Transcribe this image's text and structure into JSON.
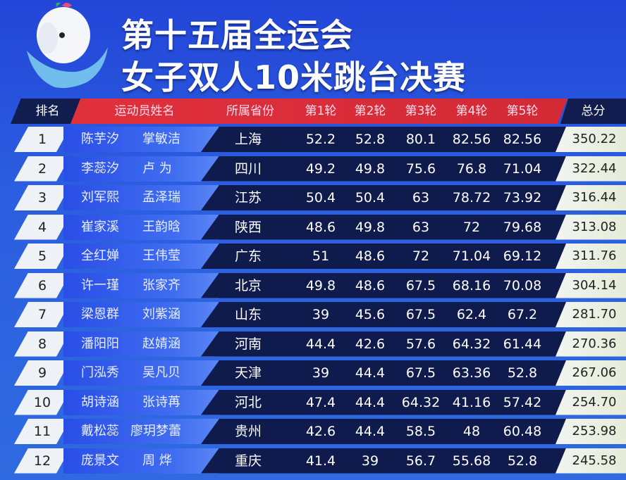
{
  "title": {
    "line1": "第十五届全运会",
    "line2": "女子双人10米跳台决赛"
  },
  "colors": {
    "background": "#2a58dc",
    "header_red": "#d92d38",
    "dark_navy": "#0e1b4c",
    "name_band": "#3a64ee",
    "rank_box": "#eef1f6"
  },
  "headers": {
    "rank": "排名",
    "athletes": "运动员姓名",
    "province": "所属省份",
    "r1": "第1轮",
    "r2": "第2轮",
    "r3": "第3轮",
    "r4": "第4轮",
    "r5": "第5轮",
    "total": "总分"
  },
  "rows": [
    {
      "rank": "1",
      "a1": "陈芋汐",
      "a2": "掌敏洁",
      "province": "上海",
      "r": [
        "52.2",
        "52.8",
        "80.1",
        "82.56",
        "82.56"
      ],
      "total": "350.22"
    },
    {
      "rank": "2",
      "a1": "李蕊汐",
      "a2": "卢 为",
      "province": "四川",
      "r": [
        "49.2",
        "49.8",
        "75.6",
        "76.8",
        "71.04"
      ],
      "total": "322.44"
    },
    {
      "rank": "3",
      "a1": "刘军熙",
      "a2": "孟泽瑞",
      "province": "江苏",
      "r": [
        "50.4",
        "50.4",
        "63",
        "78.72",
        "73.92"
      ],
      "total": "316.44"
    },
    {
      "rank": "4",
      "a1": "崔家溪",
      "a2": "王韵晗",
      "province": "陕西",
      "r": [
        "48.6",
        "49.8",
        "63",
        "72",
        "79.68"
      ],
      "total": "313.08"
    },
    {
      "rank": "5",
      "a1": "全红婵",
      "a2": "王伟莹",
      "province": "广东",
      "r": [
        "51",
        "48.6",
        "72",
        "71.04",
        "69.12"
      ],
      "total": "311.76"
    },
    {
      "rank": "6",
      "a1": "许一瑾",
      "a2": "张家齐",
      "province": "北京",
      "r": [
        "49.8",
        "48.6",
        "67.5",
        "68.16",
        "70.08"
      ],
      "total": "304.14"
    },
    {
      "rank": "7",
      "a1": "梁恩群",
      "a2": "刘紫涵",
      "province": "山东",
      "r": [
        "39",
        "45.6",
        "67.5",
        "62.4",
        "67.2"
      ],
      "total": "281.70"
    },
    {
      "rank": "8",
      "a1": "潘阳阳",
      "a2": "赵婧涵",
      "province": "河南",
      "r": [
        "44.4",
        "42.6",
        "57.6",
        "64.32",
        "61.44"
      ],
      "total": "270.36"
    },
    {
      "rank": "9",
      "a1": "门泓秀",
      "a2": "吴凡贝",
      "province": "天津",
      "r": [
        "39",
        "44.4",
        "67.5",
        "63.36",
        "52.8"
      ],
      "total": "267.06"
    },
    {
      "rank": "10",
      "a1": "胡诗涵",
      "a2": "张诗苒",
      "province": "河北",
      "r": [
        "47.4",
        "44.4",
        "64.32",
        "41.16",
        "57.42"
      ],
      "total": "254.70"
    },
    {
      "rank": "11",
      "a1": "戴松蕊",
      "a2": "廖玥梦蕾",
      "province": "贵州",
      "r": [
        "42.6",
        "44.4",
        "58.5",
        "48",
        "60.48"
      ],
      "total": "253.98"
    },
    {
      "rank": "12",
      "a1": "庞景文",
      "a2": "周 烨",
      "province": "重庆",
      "r": [
        "41.4",
        "39",
        "56.7",
        "55.68",
        "52.8"
      ],
      "total": "245.58"
    }
  ]
}
